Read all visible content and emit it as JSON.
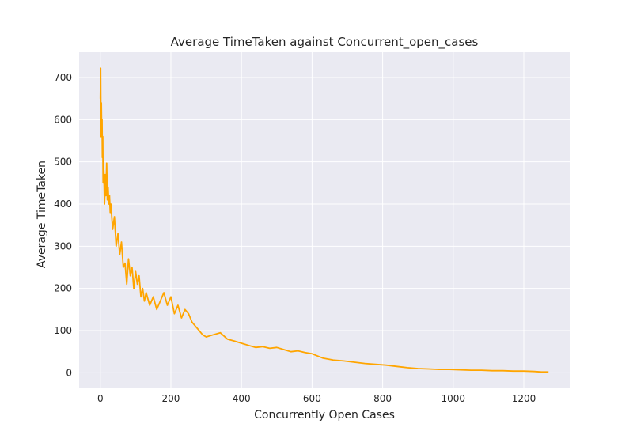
{
  "chart_data": {
    "type": "line",
    "title": "Average TimeTaken against Concurrent_open_cases",
    "xlabel": "Concurrently Open Cases",
    "ylabel": "Average TimeTaken",
    "xlim": [
      -60,
      1330
    ],
    "ylim": [
      -35,
      760
    ],
    "xticks": [
      0,
      200,
      400,
      600,
      800,
      1000,
      1200
    ],
    "yticks": [
      0,
      100,
      200,
      300,
      400,
      500,
      600,
      700
    ],
    "grid": true,
    "legend": "none",
    "background_color": "#eaeaf2",
    "grid_color": "#ffffff",
    "series": [
      {
        "color": "#ffa500",
        "x": [
          0,
          1,
          2,
          3,
          4,
          5,
          6,
          7,
          8,
          10,
          12,
          14,
          16,
          18,
          20,
          22,
          24,
          26,
          28,
          30,
          35,
          40,
          45,
          50,
          55,
          60,
          65,
          70,
          75,
          80,
          85,
          90,
          95,
          100,
          105,
          110,
          115,
          120,
          125,
          130,
          140,
          150,
          160,
          170,
          180,
          190,
          200,
          210,
          220,
          230,
          240,
          250,
          260,
          270,
          280,
          290,
          300,
          320,
          340,
          360,
          380,
          400,
          420,
          440,
          460,
          480,
          500,
          520,
          540,
          560,
          580,
          600,
          630,
          660,
          690,
          720,
          750,
          780,
          810,
          840,
          870,
          900,
          930,
          960,
          990,
          1020,
          1050,
          1080,
          1110,
          1140,
          1170,
          1200,
          1230,
          1250,
          1270
        ],
        "y": [
          650,
          722,
          560,
          640,
          580,
          600,
          510,
          560,
          450,
          480,
          400,
          470,
          420,
          497,
          410,
          440,
          400,
          420,
          380,
          400,
          340,
          370,
          300,
          330,
          280,
          310,
          250,
          260,
          210,
          270,
          230,
          250,
          200,
          240,
          210,
          230,
          180,
          200,
          170,
          190,
          160,
          180,
          150,
          170,
          190,
          160,
          180,
          140,
          160,
          130,
          150,
          140,
          120,
          110,
          100,
          90,
          85,
          90,
          95,
          80,
          75,
          70,
          65,
          60,
          62,
          58,
          60,
          55,
          50,
          52,
          48,
          45,
          35,
          30,
          28,
          25,
          22,
          20,
          18,
          15,
          12,
          10,
          9,
          8,
          8,
          7,
          6,
          6,
          5,
          5,
          4,
          4,
          3,
          2,
          2
        ]
      }
    ]
  }
}
